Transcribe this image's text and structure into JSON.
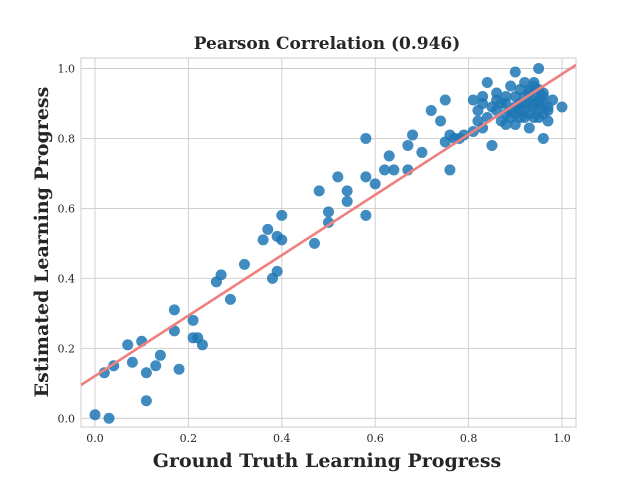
{
  "chart_data": {
    "type": "scatter",
    "title": "Pearson Correlation (0.946)",
    "xlabel": "Ground Truth Learning Progress",
    "ylabel": "Estimated Learning Progress",
    "xlim": [
      -0.03,
      1.03
    ],
    "ylim": [
      -0.025,
      1.03
    ],
    "xticks": [
      "0.0",
      "0.2",
      "0.4",
      "0.6",
      "0.8",
      "1.0"
    ],
    "yticks": [
      "0.0",
      "0.2",
      "0.4",
      "0.6",
      "0.8",
      "1.0"
    ],
    "grid": true,
    "point_color": "#1f77b4",
    "fit_line": {
      "color": "#f08080",
      "x": [
        -0.03,
        1.03
      ],
      "y": [
        0.095,
        1.01
      ]
    },
    "points": [
      [
        0.0,
        0.01
      ],
      [
        0.03,
        0.0
      ],
      [
        0.02,
        0.13
      ],
      [
        0.04,
        0.15
      ],
      [
        0.07,
        0.21
      ],
      [
        0.08,
        0.16
      ],
      [
        0.1,
        0.22
      ],
      [
        0.11,
        0.13
      ],
      [
        0.11,
        0.05
      ],
      [
        0.13,
        0.15
      ],
      [
        0.14,
        0.18
      ],
      [
        0.17,
        0.25
      ],
      [
        0.17,
        0.31
      ],
      [
        0.18,
        0.14
      ],
      [
        0.21,
        0.28
      ],
      [
        0.21,
        0.23
      ],
      [
        0.22,
        0.23
      ],
      [
        0.23,
        0.21
      ],
      [
        0.26,
        0.39
      ],
      [
        0.27,
        0.41
      ],
      [
        0.29,
        0.34
      ],
      [
        0.32,
        0.44
      ],
      [
        0.36,
        0.51
      ],
      [
        0.37,
        0.54
      ],
      [
        0.38,
        0.4
      ],
      [
        0.39,
        0.52
      ],
      [
        0.39,
        0.42
      ],
      [
        0.4,
        0.51
      ],
      [
        0.4,
        0.58
      ],
      [
        0.47,
        0.5
      ],
      [
        0.48,
        0.65
      ],
      [
        0.5,
        0.56
      ],
      [
        0.5,
        0.59
      ],
      [
        0.52,
        0.69
      ],
      [
        0.54,
        0.62
      ],
      [
        0.54,
        0.65
      ],
      [
        0.58,
        0.58
      ],
      [
        0.58,
        0.8
      ],
      [
        0.58,
        0.69
      ],
      [
        0.6,
        0.67
      ],
      [
        0.62,
        0.71
      ],
      [
        0.63,
        0.75
      ],
      [
        0.64,
        0.71
      ],
      [
        0.67,
        0.71
      ],
      [
        0.67,
        0.78
      ],
      [
        0.68,
        0.81
      ],
      [
        0.7,
        0.76
      ],
      [
        0.72,
        0.88
      ],
      [
        0.74,
        0.85
      ],
      [
        0.75,
        0.91
      ],
      [
        0.75,
        0.79
      ],
      [
        0.76,
        0.81
      ],
      [
        0.77,
        0.8
      ],
      [
        0.76,
        0.71
      ],
      [
        0.78,
        0.8
      ],
      [
        0.79,
        0.81
      ],
      [
        0.81,
        0.91
      ],
      [
        0.81,
        0.82
      ],
      [
        0.82,
        0.88
      ],
      [
        0.82,
        0.85
      ],
      [
        0.83,
        0.92
      ],
      [
        0.83,
        0.83
      ],
      [
        0.84,
        0.86
      ],
      [
        0.84,
        0.96
      ],
      [
        0.85,
        0.78
      ],
      [
        0.85,
        0.89
      ],
      [
        0.86,
        0.91
      ],
      [
        0.86,
        0.93
      ],
      [
        0.87,
        0.85
      ],
      [
        0.87,
        0.9
      ],
      [
        0.88,
        0.84
      ],
      [
        0.88,
        0.87
      ],
      [
        0.88,
        0.92
      ],
      [
        0.89,
        0.88
      ],
      [
        0.89,
        0.95
      ],
      [
        0.9,
        0.84
      ],
      [
        0.9,
        0.89
      ],
      [
        0.9,
        0.92
      ],
      [
        0.9,
        0.99
      ],
      [
        0.91,
        0.86
      ],
      [
        0.91,
        0.9
      ],
      [
        0.92,
        0.88
      ],
      [
        0.92,
        0.92
      ],
      [
        0.92,
        0.96
      ],
      [
        0.93,
        0.83
      ],
      [
        0.93,
        0.87
      ],
      [
        0.93,
        0.9
      ],
      [
        0.93,
        0.94
      ],
      [
        0.94,
        0.86
      ],
      [
        0.94,
        0.89
      ],
      [
        0.94,
        0.92
      ],
      [
        0.94,
        0.96
      ],
      [
        0.95,
        0.88
      ],
      [
        0.95,
        0.91
      ],
      [
        0.95,
        1.0
      ],
      [
        0.95,
        0.94
      ],
      [
        0.96,
        0.8
      ],
      [
        0.96,
        0.87
      ],
      [
        0.96,
        0.9
      ],
      [
        0.96,
        0.93
      ],
      [
        0.97,
        0.85
      ],
      [
        0.97,
        0.89
      ],
      [
        0.98,
        0.91
      ],
      [
        1.0,
        0.89
      ],
      [
        0.83,
        0.9
      ],
      [
        0.86,
        0.88
      ],
      [
        0.89,
        0.86
      ],
      [
        0.91,
        0.94
      ],
      [
        0.92,
        0.86
      ],
      [
        0.93,
        0.93
      ],
      [
        0.94,
        0.95
      ],
      [
        0.95,
        0.86
      ],
      [
        0.96,
        0.92
      ],
      [
        0.97,
        0.88
      ],
      [
        0.88,
        0.9
      ],
      [
        0.9,
        0.87
      ],
      [
        0.94,
        0.9
      ],
      [
        0.95,
        0.9
      ],
      [
        0.92,
        0.9
      ],
      [
        0.91,
        0.88
      ]
    ]
  }
}
